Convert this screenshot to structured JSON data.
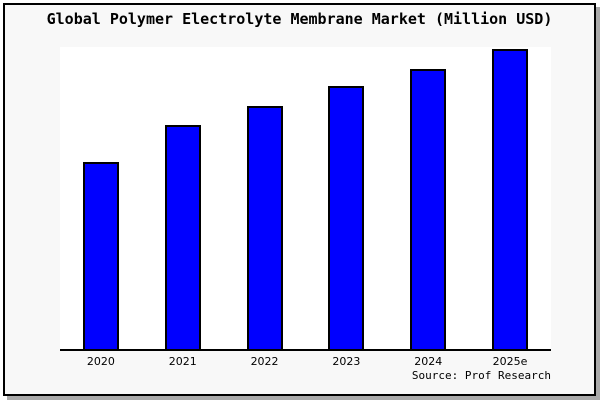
{
  "frame": {
    "background": "#f8f8f8",
    "border_color": "#000000",
    "shadow_color": "#aaaaaa",
    "plot_background": "#ffffff"
  },
  "source_credit": "Source: Prof Research",
  "chart_data": {
    "type": "bar",
    "title": "Global Polymer Electrolyte Membrane Market (Million USD)",
    "categories": [
      "2020",
      "2021",
      "2022",
      "2023",
      "2024",
      "2025e"
    ],
    "values": [
      187,
      224,
      243,
      263,
      280,
      300
    ],
    "ylim": [
      0,
      302
    ],
    "value_note": "No y-axis, gridlines or data labels are shown; values are relative bar heights estimated from pixels (unit: Million USD, unlabeled scale)",
    "xlabel": "",
    "ylabel": "",
    "grid": false,
    "legend": false,
    "bar_color": "#0000ff",
    "bar_border_color": "#000000",
    "axis_color": "#000000"
  }
}
